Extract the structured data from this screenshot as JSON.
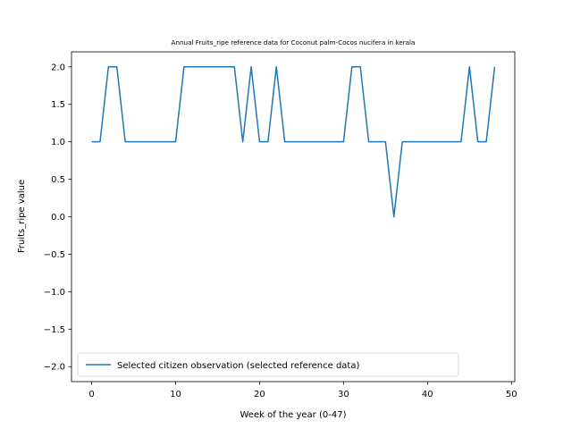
{
  "chart_data": {
    "type": "line",
    "title": "Annual Fruits_ripe reference data for Coconut palm-Cocos nucifera in kerala",
    "xlabel": "Week of the year (0-47)",
    "ylabel": "Fruits_ripe value",
    "xlim": [
      -2.4,
      50.4
    ],
    "ylim": [
      -2.2,
      2.2
    ],
    "xticks": [
      0,
      10,
      20,
      30,
      40,
      50
    ],
    "xtick_labels": [
      "0",
      "10",
      "20",
      "30",
      "40",
      "50"
    ],
    "yticks": [
      -2.0,
      -1.5,
      -1.0,
      -0.5,
      0.0,
      0.5,
      1.0,
      1.5,
      2.0
    ],
    "ytick_labels": [
      "−2.0",
      "−1.5",
      "−1.0",
      "−0.5",
      "0.0",
      "0.5",
      "1.0",
      "1.5",
      "2.0"
    ],
    "grid": false,
    "legend": {
      "placement": "lower-left",
      "entries": [
        "Selected citizen observation (selected reference data)"
      ]
    },
    "series": [
      {
        "name": "Selected citizen observation (selected reference data)",
        "color": "#1f77b4",
        "x": [
          0,
          1,
          2,
          3,
          4,
          5,
          6,
          7,
          8,
          9,
          10,
          11,
          12,
          13,
          14,
          15,
          16,
          17,
          18,
          19,
          20,
          21,
          22,
          23,
          24,
          25,
          26,
          27,
          28,
          29,
          30,
          31,
          32,
          33,
          34,
          35,
          36,
          37,
          38,
          39,
          40,
          41,
          42,
          43,
          44,
          45,
          46,
          47,
          48
        ],
        "y": [
          1,
          1,
          2,
          2,
          1,
          1,
          1,
          1,
          1,
          1,
          1,
          2,
          2,
          2,
          2,
          2,
          2,
          2,
          1,
          2,
          1,
          1,
          2,
          1,
          1,
          1,
          1,
          1,
          1,
          1,
          1,
          2,
          2,
          1,
          1,
          1,
          0,
          1,
          1,
          1,
          1,
          1,
          1,
          1,
          1,
          2,
          1,
          1,
          2
        ]
      }
    ]
  }
}
